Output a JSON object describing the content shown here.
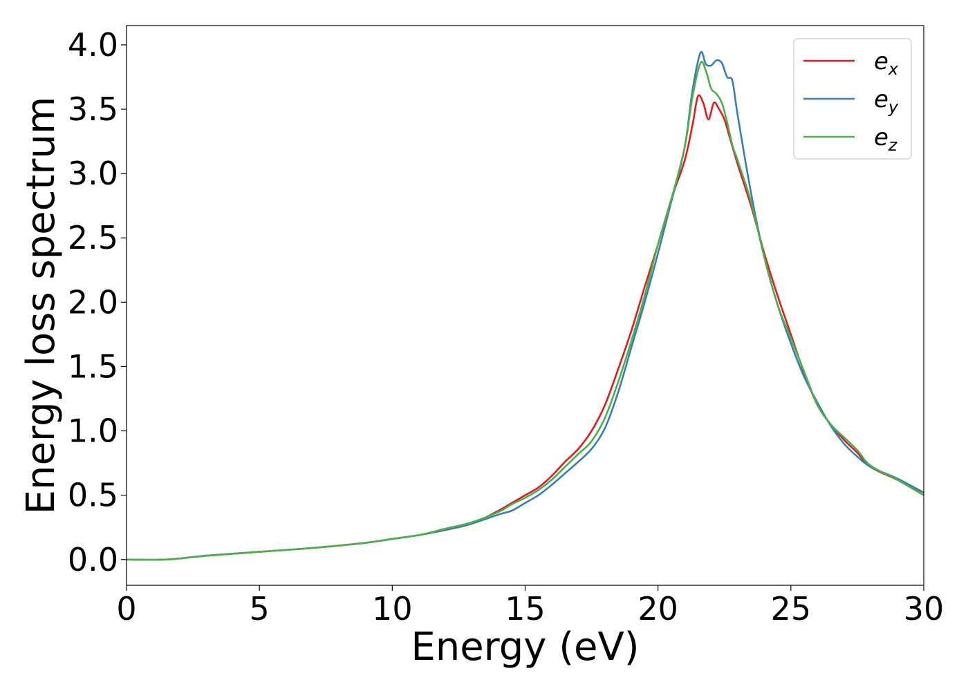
{
  "chart_data": {
    "type": "line",
    "title": "",
    "xlabel": "Energy (eV)",
    "ylabel": "Energy loss spectrum",
    "xlim": [
      0,
      30
    ],
    "ylim": [
      -0.2,
      4.15
    ],
    "xticks": [
      "0",
      "5",
      "10",
      "15",
      "20",
      "25",
      "30"
    ],
    "yticks": [
      "0.0",
      "0.5",
      "1.0",
      "1.5",
      "2.0",
      "2.5",
      "3.0",
      "3.5",
      "4.0"
    ],
    "grid": false,
    "legend_position": "top-right",
    "series": [
      {
        "name": "e_x",
        "label_base": "e",
        "label_sub": "x",
        "color": "#e41a1c",
        "points": [
          [
            0,
            0.0
          ],
          [
            1.5,
            0.0
          ],
          [
            3,
            0.03
          ],
          [
            5,
            0.06
          ],
          [
            7,
            0.09
          ],
          [
            9,
            0.13
          ],
          [
            10,
            0.16
          ],
          [
            11,
            0.19
          ],
          [
            12,
            0.23
          ],
          [
            13,
            0.28
          ],
          [
            14,
            0.38
          ],
          [
            14.5,
            0.44
          ],
          [
            15,
            0.5
          ],
          [
            15.5,
            0.56
          ],
          [
            16,
            0.65
          ],
          [
            16.5,
            0.76
          ],
          [
            17,
            0.86
          ],
          [
            17.5,
            1.0
          ],
          [
            18,
            1.2
          ],
          [
            18.5,
            1.48
          ],
          [
            19,
            1.78
          ],
          [
            19.5,
            2.12
          ],
          [
            20,
            2.45
          ],
          [
            20.5,
            2.8
          ],
          [
            21,
            3.1
          ],
          [
            21.3,
            3.38
          ],
          [
            21.5,
            3.6
          ],
          [
            21.7,
            3.55
          ],
          [
            21.9,
            3.42
          ],
          [
            22.1,
            3.55
          ],
          [
            22.3,
            3.5
          ],
          [
            22.5,
            3.42
          ],
          [
            22.7,
            3.28
          ],
          [
            23,
            3.07
          ],
          [
            23.5,
            2.75
          ],
          [
            24,
            2.38
          ],
          [
            24.5,
            2.05
          ],
          [
            25,
            1.75
          ],
          [
            25.5,
            1.45
          ],
          [
            26,
            1.2
          ],
          [
            26.5,
            1.05
          ],
          [
            27,
            0.93
          ],
          [
            27.5,
            0.83
          ],
          [
            28,
            0.72
          ],
          [
            29,
            0.62
          ],
          [
            30,
            0.52
          ]
        ]
      },
      {
        "name": "e_y",
        "label_base": "e",
        "label_sub": "y",
        "color": "#377eb8",
        "points": [
          [
            0,
            0.0
          ],
          [
            1.5,
            0.0
          ],
          [
            3,
            0.03
          ],
          [
            5,
            0.06
          ],
          [
            7,
            0.09
          ],
          [
            9,
            0.13
          ],
          [
            10,
            0.16
          ],
          [
            11,
            0.19
          ],
          [
            12,
            0.23
          ],
          [
            13,
            0.28
          ],
          [
            14,
            0.35
          ],
          [
            14.5,
            0.38
          ],
          [
            15,
            0.44
          ],
          [
            15.5,
            0.5
          ],
          [
            16,
            0.58
          ],
          [
            16.5,
            0.67
          ],
          [
            17,
            0.76
          ],
          [
            17.5,
            0.86
          ],
          [
            18,
            1.02
          ],
          [
            18.5,
            1.3
          ],
          [
            19,
            1.65
          ],
          [
            19.5,
            2.0
          ],
          [
            20,
            2.38
          ],
          [
            20.5,
            2.78
          ],
          [
            21,
            3.2
          ],
          [
            21.3,
            3.65
          ],
          [
            21.6,
            3.94
          ],
          [
            21.8,
            3.85
          ],
          [
            22,
            3.84
          ],
          [
            22.2,
            3.88
          ],
          [
            22.4,
            3.86
          ],
          [
            22.6,
            3.75
          ],
          [
            22.8,
            3.72
          ],
          [
            23,
            3.45
          ],
          [
            23.5,
            2.85
          ],
          [
            24,
            2.35
          ],
          [
            24.5,
            1.98
          ],
          [
            25,
            1.68
          ],
          [
            25.5,
            1.42
          ],
          [
            26,
            1.22
          ],
          [
            26.5,
            1.04
          ],
          [
            27,
            0.9
          ],
          [
            27.5,
            0.8
          ],
          [
            28,
            0.72
          ],
          [
            29,
            0.63
          ],
          [
            30,
            0.52
          ]
        ]
      },
      {
        "name": "e_z",
        "label_base": "e",
        "label_sub": "z",
        "color": "#4daf4a",
        "points": [
          [
            0,
            0.0
          ],
          [
            1.5,
            0.0
          ],
          [
            3,
            0.03
          ],
          [
            5,
            0.06
          ],
          [
            7,
            0.09
          ],
          [
            9,
            0.13
          ],
          [
            10,
            0.16
          ],
          [
            11,
            0.19
          ],
          [
            12,
            0.24
          ],
          [
            13,
            0.29
          ],
          [
            14,
            0.37
          ],
          [
            14.5,
            0.43
          ],
          [
            15,
            0.48
          ],
          [
            15.5,
            0.54
          ],
          [
            16,
            0.62
          ],
          [
            16.5,
            0.72
          ],
          [
            17,
            0.82
          ],
          [
            17.5,
            0.92
          ],
          [
            18,
            1.1
          ],
          [
            18.5,
            1.38
          ],
          [
            19,
            1.7
          ],
          [
            19.5,
            2.05
          ],
          [
            20,
            2.45
          ],
          [
            20.5,
            2.8
          ],
          [
            21,
            3.2
          ],
          [
            21.3,
            3.6
          ],
          [
            21.6,
            3.86
          ],
          [
            21.8,
            3.8
          ],
          [
            22,
            3.66
          ],
          [
            22.2,
            3.62
          ],
          [
            22.4,
            3.55
          ],
          [
            22.6,
            3.4
          ],
          [
            22.8,
            3.22
          ],
          [
            23,
            3.1
          ],
          [
            23.5,
            2.78
          ],
          [
            24,
            2.35
          ],
          [
            24.5,
            1.98
          ],
          [
            25,
            1.72
          ],
          [
            25.5,
            1.46
          ],
          [
            26,
            1.2
          ],
          [
            26.5,
            1.05
          ],
          [
            27,
            0.95
          ],
          [
            27.5,
            0.85
          ],
          [
            28,
            0.73
          ],
          [
            29,
            0.62
          ],
          [
            30,
            0.5
          ]
        ]
      }
    ]
  }
}
